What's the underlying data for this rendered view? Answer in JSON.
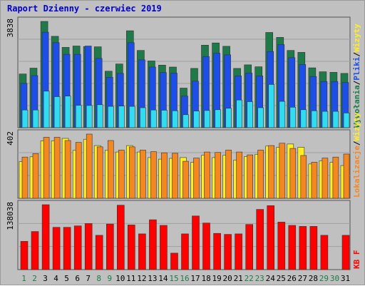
{
  "chart_data": [
    {
      "type": "bar",
      "panel": "hits",
      "title": "Raport Dzienny -  czerwiec 2019",
      "ymax_label": "3838",
      "ylim": [
        0,
        3838
      ],
      "categories": [
        "1",
        "2",
        "3",
        "4",
        "5",
        "6",
        "7",
        "8",
        "9",
        "10",
        "11",
        "12",
        "13",
        "14",
        "15",
        "16",
        "17",
        "18",
        "19",
        "20",
        "21",
        "22",
        "23",
        "24",
        "25",
        "26",
        "27",
        "28",
        "29",
        "30",
        "31"
      ],
      "series": [
        {
          "name": "Wywołania",
          "color": "#1f7a4a",
          "values": [
            1940,
            2150,
            3838,
            3300,
            2900,
            2950,
            2930,
            2920,
            2040,
            2300,
            3500,
            2790,
            2410,
            2260,
            2190,
            1430,
            2140,
            2980,
            3060,
            2940,
            2140,
            2270,
            2200,
            3440,
            3260,
            2790,
            2720,
            2160,
            2020,
            2000,
            1960
          ]
        },
        {
          "name": "Pliki",
          "color": "#1e4ee8",
          "values": [
            1600,
            1880,
            3450,
            3070,
            2650,
            2650,
            2950,
            2500,
            1820,
            1960,
            3070,
            2450,
            2190,
            1990,
            1970,
            1140,
            1680,
            2570,
            2690,
            2630,
            1870,
            1970,
            1870,
            2750,
            3000,
            2530,
            2280,
            1850,
            1670,
            1670,
            1630
          ]
        },
        {
          "name": "Wizyty",
          "color": "#30dcf0",
          "values": [
            640,
            640,
            1320,
            1120,
            1140,
            810,
            800,
            830,
            770,
            780,
            770,
            720,
            640,
            630,
            610,
            470,
            600,
            620,
            650,
            700,
            1000,
            940,
            720,
            1560,
            950,
            740,
            650,
            610,
            590,
            590,
            530
          ]
        }
      ]
    },
    {
      "type": "bar",
      "panel": "sites",
      "ymax_label": "402",
      "ylim": [
        0,
        402
      ],
      "categories": [
        "1",
        "2",
        "3",
        "4",
        "5",
        "6",
        "7",
        "8",
        "9",
        "10",
        "11",
        "12",
        "13",
        "14",
        "15",
        "16",
        "17",
        "18",
        "19",
        "20",
        "21",
        "22",
        "23",
        "24",
        "25",
        "26",
        "27",
        "28",
        "29",
        "30",
        "31"
      ],
      "series": [
        {
          "name": "Wizyty",
          "color": "#ffef20",
          "values": [
            230,
            260,
            360,
            360,
            375,
            300,
            370,
            330,
            300,
            290,
            330,
            290,
            255,
            245,
            250,
            255,
            225,
            270,
            255,
            270,
            240,
            262,
            275,
            327,
            320,
            340,
            320,
            215,
            235,
            225,
            205
          ]
        },
        {
          "name": "Lokalizacje",
          "color": "#f48720",
          "values": [
            258,
            280,
            382,
            382,
            362,
            350,
            402,
            322,
            362,
            302,
            322,
            302,
            292,
            285,
            282,
            232,
            252,
            290,
            287,
            302,
            290,
            272,
            302,
            330,
            345,
            312,
            268,
            226,
            252,
            258,
            277
          ]
        }
      ]
    },
    {
      "type": "bar",
      "panel": "kb",
      "ymax_label": "138038",
      "ylim": [
        0,
        138038
      ],
      "categories": [
        "1",
        "2",
        "3",
        "4",
        "5",
        "6",
        "7",
        "8",
        "9",
        "10",
        "11",
        "12",
        "13",
        "14",
        "15",
        "16",
        "17",
        "18",
        "19",
        "20",
        "21",
        "22",
        "23",
        "24",
        "25",
        "26",
        "27",
        "28",
        "29",
        "30",
        "31"
      ],
      "series": [
        {
          "name": "KB F",
          "color": "#ff0000",
          "values": [
            60000,
            81000,
            138000,
            90000,
            90000,
            93000,
            98000,
            73000,
            97000,
            137000,
            95000,
            76000,
            106000,
            94000,
            35000,
            76000,
            114000,
            99000,
            77000,
            75000,
            76000,
            96000,
            128000,
            136000,
            101000,
            94000,
            92000,
            92000,
            73000,
            0,
            73000
          ]
        }
      ]
    }
  ],
  "x_labels": [
    {
      "text": "1",
      "color": "#1f7a4a"
    },
    {
      "text": "2",
      "color": "#1f7a4a"
    },
    {
      "text": "3",
      "color": "#000000"
    },
    {
      "text": "4",
      "color": "#000000"
    },
    {
      "text": "5",
      "color": "#000000"
    },
    {
      "text": "6",
      "color": "#000000"
    },
    {
      "text": "7",
      "color": "#000000"
    },
    {
      "text": "8",
      "color": "#1f7a4a"
    },
    {
      "text": "9",
      "color": "#1f7a4a"
    },
    {
      "text": "10",
      "color": "#000000"
    },
    {
      "text": "11",
      "color": "#000000"
    },
    {
      "text": "12",
      "color": "#000000"
    },
    {
      "text": "13",
      "color": "#000000"
    },
    {
      "text": "14",
      "color": "#000000"
    },
    {
      "text": "15",
      "color": "#1f7a4a"
    },
    {
      "text": "16",
      "color": "#1f7a4a"
    },
    {
      "text": "17",
      "color": "#000000"
    },
    {
      "text": "18",
      "color": "#000000"
    },
    {
      "text": "19",
      "color": "#000000"
    },
    {
      "text": "20",
      "color": "#000000"
    },
    {
      "text": "21",
      "color": "#000000"
    },
    {
      "text": "22",
      "color": "#1f7a4a"
    },
    {
      "text": "23",
      "color": "#1f7a4a"
    },
    {
      "text": "24",
      "color": "#000000"
    },
    {
      "text": "25",
      "color": "#000000"
    },
    {
      "text": "26",
      "color": "#000000"
    },
    {
      "text": "27",
      "color": "#000000"
    },
    {
      "text": "28",
      "color": "#000000"
    },
    {
      "text": "29",
      "color": "#1f7a4a"
    },
    {
      "text": "30",
      "color": "#1f7a4a"
    },
    {
      "text": "31",
      "color": "#000000"
    }
  ],
  "side_legend": {
    "hits": [
      {
        "text": "Wywołania",
        "color": "#1f7a4a"
      },
      {
        "text": "/",
        "color": "#000000"
      },
      {
        "text": "Pliki",
        "color": "#1e4ee8"
      },
      {
        "text": "/",
        "color": "#000000"
      },
      {
        "text": "Wizyty",
        "color": "#ffef20"
      }
    ],
    "sites": [
      {
        "text": "Lokalizacje",
        "color": "#f48720"
      },
      {
        "text": "/",
        "color": "#000000"
      },
      {
        "text": "Wizyty",
        "color": "#ffef20"
      }
    ],
    "kb": [
      {
        "text": "KB F",
        "color": "#ff0000"
      }
    ]
  },
  "colors": {
    "background": "#c0c0c0",
    "plot_border": "#555555",
    "grid": "#a0a0a0"
  }
}
